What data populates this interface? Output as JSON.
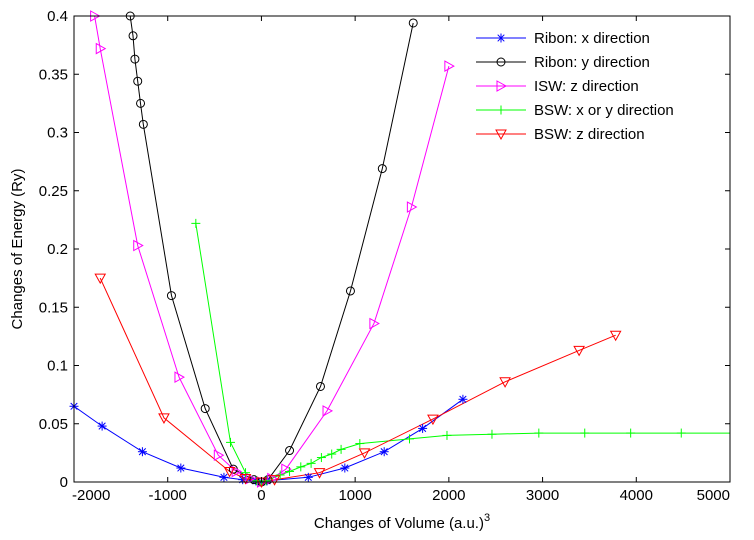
{
  "chart_data": {
    "type": "line",
    "title": "",
    "xlabel": "Changes of Volume (a.u.)",
    "xlabel_superscript": "3",
    "ylabel": "Changes of Energy (Ry)",
    "xlim": [
      -2000,
      5000
    ],
    "ylim": [
      0,
      0.4
    ],
    "xticks": [
      "-2000",
      "-1000",
      "0",
      "1000",
      "2000",
      "3000",
      "4000",
      "5000"
    ],
    "yticks": [
      "0",
      "0.05",
      "0.1",
      "0.15",
      "0.2",
      "0.25",
      "0.3",
      "0.35",
      "0.4"
    ],
    "grid": false,
    "legend_position": "top-right",
    "series": [
      {
        "name": "Ribon: x direction",
        "color": "#0000ff",
        "marker": "asterisk",
        "x": [
          -2000,
          -1700,
          -1270,
          -860,
          -400,
          -200,
          -60,
          0,
          60,
          500,
          890,
          1310,
          1720,
          2150
        ],
        "y": [
          0.065,
          0.048,
          0.026,
          0.012,
          0.004,
          0.002,
          0.001,
          0.0,
          0.001,
          0.004,
          0.012,
          0.026,
          0.046,
          0.071
        ]
      },
      {
        "name": "Ribon: y direction",
        "color": "#000000",
        "marker": "circle",
        "x": [
          -1400,
          -1370,
          -1350,
          -1320,
          -1290,
          -1260,
          -960,
          -600,
          -300,
          -80,
          0,
          70,
          300,
          630,
          950,
          1290,
          1620
        ],
        "y": [
          0.4,
          0.383,
          0.363,
          0.344,
          0.325,
          0.307,
          0.16,
          0.063,
          0.011,
          0.002,
          0.0,
          0.002,
          0.027,
          0.082,
          0.164,
          0.269,
          0.394
        ]
      },
      {
        "name": "ISW: z direction",
        "color": "#ff00ff",
        "marker": "triangle-right",
        "x": [
          -1780,
          -1720,
          -1320,
          -880,
          -460,
          -270,
          -120,
          0,
          110,
          260,
          700,
          1200,
          1600,
          2000
        ],
        "y": [
          0.4,
          0.372,
          0.203,
          0.09,
          0.023,
          0.009,
          0.003,
          0.0,
          0.003,
          0.011,
          0.061,
          0.136,
          0.236,
          0.357
        ]
      },
      {
        "name": "BSW: x or y direction",
        "color": "#00ff00",
        "marker": "plus",
        "x": [
          -700,
          -330,
          -170,
          -50,
          0,
          50,
          200,
          300,
          420,
          530,
          640,
          750,
          850,
          1050,
          1580,
          1980,
          2460,
          2960,
          3450,
          3940,
          4480,
          5000
        ],
        "y": [
          0.222,
          0.034,
          0.008,
          0.001,
          0.0,
          0.001,
          0.006,
          0.009,
          0.013,
          0.016,
          0.021,
          0.024,
          0.028,
          0.033,
          0.037,
          0.04,
          0.041,
          0.042,
          0.042,
          0.042,
          0.042,
          0.042
        ]
      },
      {
        "name": "BSW: z direction",
        "color": "#ff0000",
        "marker": "triangle-down",
        "x": [
          -1720,
          -1040,
          -340,
          -170,
          0,
          140,
          620,
          1100,
          1830,
          2600,
          3390,
          3780
        ],
        "y": [
          0.175,
          0.055,
          0.009,
          0.003,
          0.0,
          0.002,
          0.008,
          0.025,
          0.054,
          0.086,
          0.113,
          0.126
        ]
      }
    ]
  }
}
